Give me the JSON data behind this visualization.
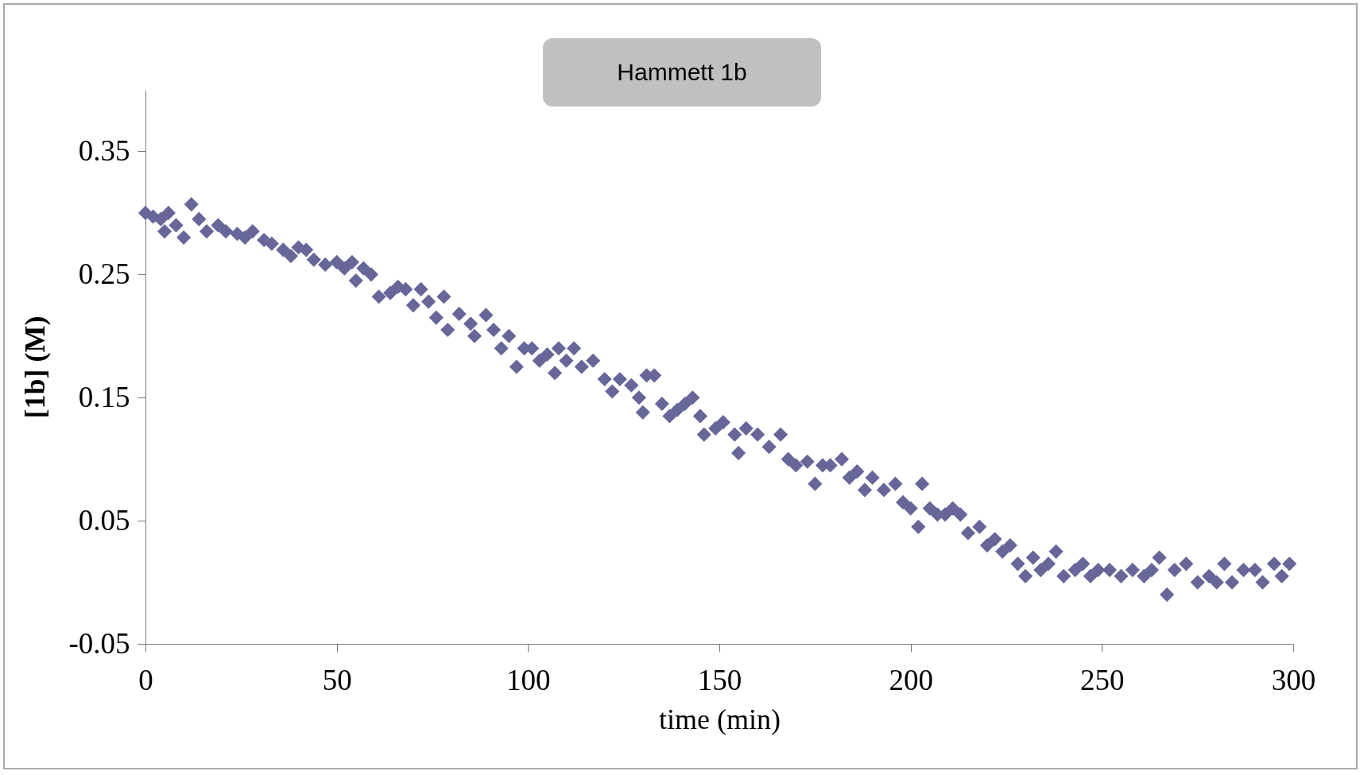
{
  "chart_data": {
    "type": "scatter",
    "title": "Hammett 1b",
    "xlabel": "time (min)",
    "ylabel": "[1b] (M)",
    "marker": "diamond",
    "xlim": [
      0,
      300
    ],
    "xticks": [
      0,
      50,
      100,
      150,
      200,
      250,
      300
    ],
    "ylim": [
      -0.05,
      0.4
    ],
    "yticks": [
      -0.05,
      0.05,
      0.15,
      0.25,
      0.35
    ],
    "series": [
      {
        "color": "#666699",
        "x": [
          0,
          2,
          4,
          5,
          6,
          8,
          10,
          12,
          14,
          16,
          19,
          21,
          24,
          26,
          28,
          31,
          33,
          36,
          38,
          40,
          42,
          44,
          47,
          50,
          52,
          54,
          55,
          57,
          59,
          61,
          64,
          66,
          68,
          70,
          72,
          74,
          76,
          78,
          79,
          82,
          85,
          86,
          89,
          91,
          93,
          95,
          97,
          99,
          101,
          103,
          105,
          107,
          108,
          110,
          112,
          114,
          117,
          120,
          122,
          124,
          127,
          129,
          131,
          133,
          130,
          135,
          137,
          139,
          141,
          143,
          145,
          146,
          149,
          151,
          154,
          155,
          157,
          160,
          163,
          166,
          168,
          170,
          173,
          175,
          177,
          179,
          182,
          184,
          186,
          188,
          190,
          193,
          196,
          198,
          200,
          202,
          203,
          205,
          207,
          209,
          211,
          213,
          215,
          218,
          220,
          222,
          224,
          226,
          228,
          230,
          232,
          234,
          236,
          238,
          240,
          243,
          245,
          247,
          249,
          252,
          255,
          258,
          261,
          263,
          265,
          267,
          269,
          272,
          275,
          278,
          280,
          282,
          284,
          287,
          290,
          292,
          295,
          297,
          299
        ],
        "values": [
          0.3,
          0.297,
          0.295,
          0.285,
          0.3,
          0.29,
          0.28,
          0.307,
          0.295,
          0.285,
          0.29,
          0.285,
          0.283,
          0.28,
          0.285,
          0.278,
          0.275,
          0.27,
          0.265,
          0.272,
          0.27,
          0.262,
          0.258,
          0.26,
          0.255,
          0.26,
          0.245,
          0.255,
          0.25,
          0.232,
          0.235,
          0.24,
          0.238,
          0.225,
          0.238,
          0.228,
          0.215,
          0.232,
          0.205,
          0.218,
          0.21,
          0.2,
          0.217,
          0.205,
          0.19,
          0.2,
          0.175,
          0.19,
          0.19,
          0.18,
          0.185,
          0.17,
          0.19,
          0.18,
          0.19,
          0.175,
          0.18,
          0.165,
          0.155,
          0.165,
          0.16,
          0.15,
          0.168,
          0.168,
          0.138,
          0.145,
          0.135,
          0.14,
          0.145,
          0.15,
          0.135,
          0.12,
          0.125,
          0.13,
          0.12,
          0.105,
          0.125,
          0.12,
          0.11,
          0.12,
          0.1,
          0.095,
          0.098,
          0.08,
          0.095,
          0.095,
          0.1,
          0.085,
          0.09,
          0.075,
          0.085,
          0.075,
          0.08,
          0.065,
          0.06,
          0.045,
          0.08,
          0.06,
          0.055,
          0.055,
          0.06,
          0.055,
          0.04,
          0.045,
          0.03,
          0.035,
          0.025,
          0.03,
          0.015,
          0.005,
          0.02,
          0.01,
          0.015,
          0.025,
          0.005,
          0.01,
          0.015,
          0.005,
          0.01,
          0.01,
          0.005,
          0.01,
          0.005,
          0.01,
          0.02,
          -0.01,
          0.01,
          0.015,
          0.0,
          0.005,
          0.0,
          0.015,
          0.0,
          0.01,
          0.01,
          0.0,
          0.015,
          0.005,
          0.015
        ]
      }
    ]
  }
}
